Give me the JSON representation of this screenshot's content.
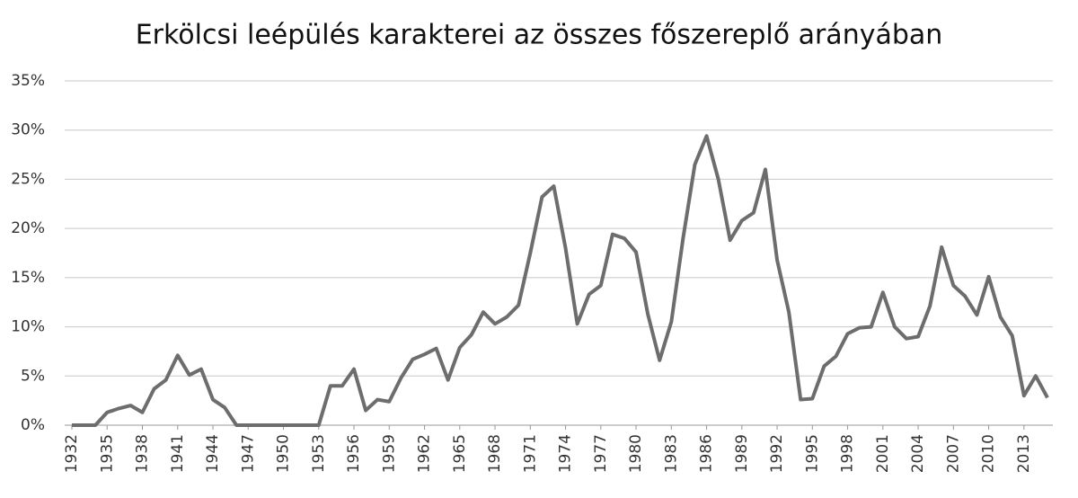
{
  "chart_data": {
    "type": "line",
    "title": "Erkölcsi leépülés karakterei az összes főszereplő arányában",
    "x": [
      1932,
      1933,
      1934,
      1935,
      1936,
      1937,
      1938,
      1939,
      1940,
      1941,
      1942,
      1943,
      1944,
      1945,
      1946,
      1947,
      1948,
      1949,
      1950,
      1951,
      1952,
      1953,
      1954,
      1955,
      1956,
      1957,
      1958,
      1959,
      1960,
      1961,
      1962,
      1963,
      1964,
      1965,
      1966,
      1967,
      1968,
      1969,
      1970,
      1971,
      1972,
      1973,
      1974,
      1975,
      1976,
      1977,
      1978,
      1979,
      1980,
      1981,
      1982,
      1983,
      1984,
      1985,
      1986,
      1987,
      1988,
      1989,
      1990,
      1991,
      1992,
      1993,
      1994,
      1995,
      1996,
      1997,
      1998,
      1999,
      2000,
      2001,
      2002,
      2003,
      2004,
      2005,
      2006,
      2007,
      2008,
      2009,
      2010,
      2011,
      2012,
      2013,
      2014,
      2015
    ],
    "series": [
      {
        "color": "#6d6d6d",
        "values": [
          0,
          0,
          0,
          1.3,
          1.7,
          2.0,
          1.3,
          3.7,
          4.6,
          7.1,
          5.1,
          5.7,
          2.6,
          1.8,
          0,
          0,
          0,
          0,
          0,
          0,
          0,
          0,
          4.0,
          4.0,
          5.7,
          1.5,
          2.6,
          2.4,
          4.8,
          6.7,
          7.2,
          7.8,
          4.6,
          7.9,
          9.2,
          11.5,
          10.3,
          11.0,
          12.2,
          17.5,
          23.2,
          24.3,
          18.0,
          10.3,
          13.3,
          14.2,
          19.4,
          19.0,
          17.6,
          11.3,
          6.6,
          10.5,
          19.0,
          26.5,
          29.4,
          25.0,
          18.8,
          20.8,
          21.6,
          26.0,
          16.8,
          11.5,
          2.6,
          2.7,
          6.0,
          7.0,
          9.3,
          9.9,
          10.0,
          13.5,
          10.0,
          8.8,
          9.0,
          12.1,
          18.1,
          14.2,
          13.1,
          11.2,
          15.1,
          11.0,
          9.1,
          3.0,
          5.0,
          2.8
        ]
      }
    ],
    "xlim": [
      1932,
      2015
    ],
    "xticks": [
      1932,
      1935,
      1938,
      1941,
      1944,
      1947,
      1950,
      1953,
      1956,
      1959,
      1962,
      1965,
      1968,
      1971,
      1974,
      1977,
      1980,
      1983,
      1986,
      1989,
      1992,
      1995,
      1998,
      2001,
      2004,
      2007,
      2010,
      2013
    ],
    "ylim": [
      0,
      35
    ],
    "yticks": [
      {
        "value": 0,
        "label": "0%"
      },
      {
        "value": 5,
        "label": "5%"
      },
      {
        "value": 10,
        "label": "10%"
      },
      {
        "value": 15,
        "label": "15%"
      },
      {
        "value": 20,
        "label": "20%"
      },
      {
        "value": 25,
        "label": "25%"
      },
      {
        "value": 30,
        "label": "30%"
      },
      {
        "value": 35,
        "label": "35%"
      }
    ],
    "grid": true
  }
}
